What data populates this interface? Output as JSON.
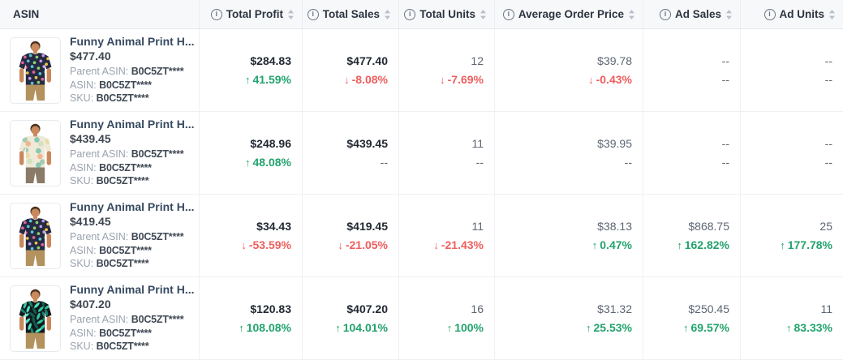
{
  "table": {
    "columns": [
      {
        "key": "asin",
        "label": "ASIN",
        "info": false,
        "sortable": false
      },
      {
        "key": "profit",
        "label": "Total Profit",
        "info": true,
        "sortable": true
      },
      {
        "key": "sales",
        "label": "Total Sales",
        "info": true,
        "sortable": true
      },
      {
        "key": "units",
        "label": "Total Units",
        "info": true,
        "sortable": true
      },
      {
        "key": "avg_order_price",
        "label": "Average Order Price",
        "info": true,
        "sortable": true
      },
      {
        "key": "ad_sales",
        "label": "Ad Sales",
        "info": true,
        "sortable": true
      },
      {
        "key": "ad_units",
        "label": "Ad Units",
        "info": true,
        "sortable": true
      }
    ],
    "rows": [
      {
        "title": "Funny Animal Print H...",
        "price": "$477.40",
        "parent_asin_label": "Parent ASIN:",
        "parent_asin": "B0C5ZT****",
        "asin_label": "ASIN:",
        "asin": "B0C5ZT****",
        "sku_label": "SKU:",
        "sku": "B0C5ZT****",
        "metrics": {
          "profit": {
            "value": "$284.83",
            "change": "41.59%",
            "dir": "up"
          },
          "sales": {
            "value": "$477.40",
            "change": "-8.08%",
            "dir": "down"
          },
          "units": {
            "value": "12",
            "change": "-7.69%",
            "dir": "down"
          },
          "avg_order_price": {
            "value": "$39.78",
            "change": "-0.43%",
            "dir": "down"
          },
          "ad_sales": {
            "value": "--",
            "change": "--",
            "dir": "none"
          },
          "ad_units": {
            "value": "--",
            "change": "--",
            "dir": "none"
          }
        },
        "image": {
          "pattern": "dots",
          "shirt": "#252a41",
          "pants": "#b3925e",
          "colors": [
            "#e0649c",
            "#56c5de",
            "#8fd06e",
            "#c49df0",
            "#efc24d"
          ]
        }
      },
      {
        "title": "Funny Animal Print H...",
        "price": "$439.45",
        "parent_asin_label": "Parent ASIN:",
        "parent_asin": "B0C5ZT****",
        "asin_label": "ASIN:",
        "asin": "B0C5ZT****",
        "sku_label": "SKU:",
        "sku": "B0C5ZT****",
        "metrics": {
          "profit": {
            "value": "$248.96",
            "change": "48.08%",
            "dir": "up"
          },
          "sales": {
            "value": "$439.45",
            "change": "--",
            "dir": "none"
          },
          "units": {
            "value": "11",
            "change": "--",
            "dir": "none"
          },
          "avg_order_price": {
            "value": "$39.95",
            "change": "--",
            "dir": "none"
          },
          "ad_sales": {
            "value": "--",
            "change": "--",
            "dir": "none"
          },
          "ad_units": {
            "value": "--",
            "change": "--",
            "dir": "none"
          }
        },
        "image": {
          "pattern": "floral",
          "shirt": "#efe9d8",
          "pants": "#8a7a68",
          "colors": [
            "#9fc9a8",
            "#f0b08a",
            "#7cc2b0",
            "#cfe0ba",
            "#e8d8a0"
          ]
        }
      },
      {
        "title": "Funny Animal Print H...",
        "price": "$419.45",
        "parent_asin_label": "Parent ASIN:",
        "parent_asin": "B0C5ZT****",
        "asin_label": "ASIN:",
        "asin": "B0C5ZT****",
        "sku_label": "SKU:",
        "sku": "B0C5ZT****",
        "metrics": {
          "profit": {
            "value": "$34.43",
            "change": "-53.59%",
            "dir": "down"
          },
          "sales": {
            "value": "$419.45",
            "change": "-21.05%",
            "dir": "down"
          },
          "units": {
            "value": "11",
            "change": "-21.43%",
            "dir": "down"
          },
          "avg_order_price": {
            "value": "$38.13",
            "change": "0.47%",
            "dir": "up"
          },
          "ad_sales": {
            "value": "$868.75",
            "change": "162.82%",
            "dir": "up"
          },
          "ad_units": {
            "value": "25",
            "change": "177.78%",
            "dir": "up"
          }
        },
        "image": {
          "pattern": "dots",
          "shirt": "#252a41",
          "pants": "#b3925e",
          "colors": [
            "#e0649c",
            "#56c5de",
            "#8fd06e",
            "#c49df0",
            "#efc24d"
          ]
        }
      },
      {
        "title": "Funny Animal Print H...",
        "price": "$407.20",
        "parent_asin_label": "Parent ASIN:",
        "parent_asin": "B0C5ZT****",
        "asin_label": "ASIN:",
        "asin": "B0C5ZT****",
        "sku_label": "SKU:",
        "sku": "B0C5ZT****",
        "metrics": {
          "profit": {
            "value": "$120.83",
            "change": "108.08%",
            "dir": "up"
          },
          "sales": {
            "value": "$407.20",
            "change": "104.01%",
            "dir": "up"
          },
          "units": {
            "value": "16",
            "change": "100%",
            "dir": "up"
          },
          "avg_order_price": {
            "value": "$31.32",
            "change": "25.53%",
            "dir": "up"
          },
          "ad_sales": {
            "value": "$250.45",
            "change": "69.57%",
            "dir": "up"
          },
          "ad_units": {
            "value": "11",
            "change": "83.33%",
            "dir": "up"
          }
        },
        "image": {
          "pattern": "leaves",
          "shirt": "#14181c",
          "pants": "#b3925e",
          "colors": [
            "#2ec79e",
            "#17806b",
            "#4fe3c1",
            "#0f5f50"
          ]
        }
      }
    ],
    "thumb": {
      "skin": "#c9895c",
      "hair": "#4a321f"
    }
  },
  "icons": {
    "up_arrow": "↑",
    "down_arrow": "↓",
    "info": "i"
  },
  "colors": {
    "positive": "#23a36d",
    "negative": "#ef5d5d",
    "header_bg": "#f7f8fa",
    "title": "#374a61"
  }
}
